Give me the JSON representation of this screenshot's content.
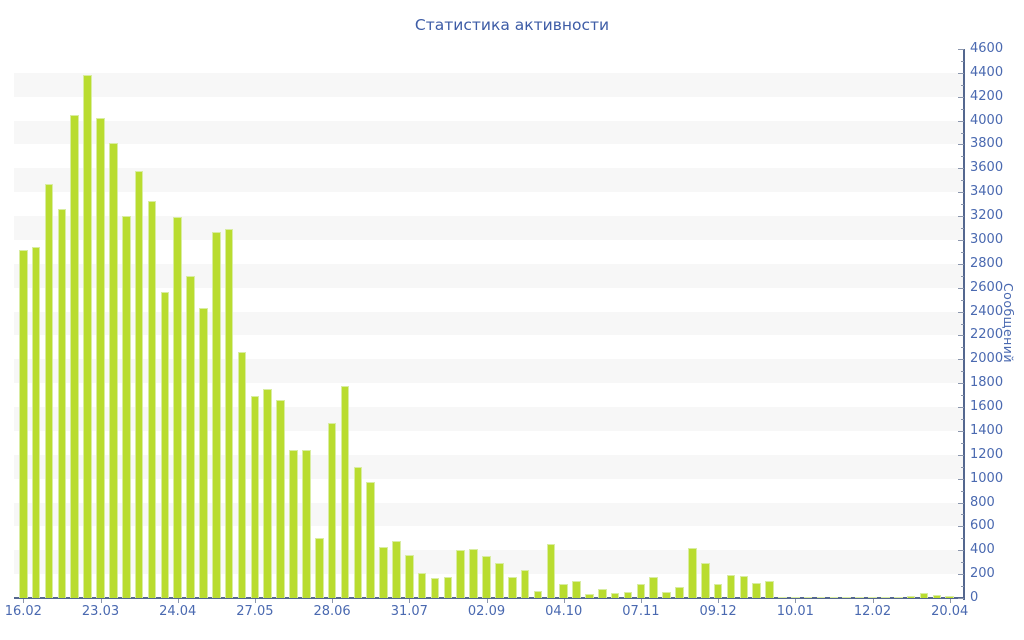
{
  "title": "Статистика активности",
  "y_axis_title": "Сообщений",
  "chart_data": {
    "type": "bar",
    "title": "Статистика активности",
    "xlabel": "",
    "ylabel": "Сообщений",
    "ylim": [
      0,
      4600
    ],
    "y_tick_step": 200,
    "y_minor_tick_step": 100,
    "y_axis_side": "right",
    "grid": "alternating horizontal bands every 200 units",
    "legend": "none",
    "y_tick_labels": [
      "0",
      "200",
      "400",
      "600",
      "800",
      "1000",
      "1200",
      "1400",
      "1600",
      "1800",
      "2000",
      "2200",
      "2400",
      "2600",
      "2800",
      "3000",
      "3200",
      "3400",
      "3600",
      "3800",
      "4000",
      "4200",
      "4400",
      "4600"
    ],
    "x_tick_labels": [
      "16.02",
      "23.03",
      "24.04",
      "27.05",
      "28.06",
      "31.07",
      "02.09",
      "04.10",
      "07.11",
      "09.12",
      "10.01",
      "12.02",
      "20.04"
    ],
    "x_tick_indices": [
      0,
      6,
      12,
      18,
      24,
      30,
      36,
      42,
      48,
      54,
      60,
      66,
      72
    ],
    "values": [
      2920,
      2940,
      3470,
      3260,
      4050,
      4380,
      4020,
      3810,
      3200,
      3580,
      3330,
      2560,
      3190,
      2700,
      2430,
      3070,
      3090,
      2060,
      1690,
      1750,
      1660,
      1240,
      1240,
      500,
      1470,
      1780,
      1100,
      970,
      430,
      480,
      360,
      210,
      170,
      175,
      400,
      410,
      350,
      295,
      175,
      235,
      60,
      450,
      115,
      145,
      30,
      75,
      45,
      50,
      115,
      175,
      50,
      90,
      420,
      290,
      115,
      190,
      185,
      125,
      140,
      8,
      8,
      10,
      12,
      10,
      10,
      12,
      10,
      12,
      12,
      20,
      40,
      22,
      18
    ],
    "colors": {
      "bar_fill": "#b9dc2f",
      "bar_edge": "#d9eda2",
      "stripe_gray": "#f7f7f7",
      "background": "#ffffff",
      "axis_line": "#54678f",
      "tick_mark": "#8b96ad",
      "tick_text": "#4a69b0",
      "title_text": "#3d5ca6"
    }
  }
}
